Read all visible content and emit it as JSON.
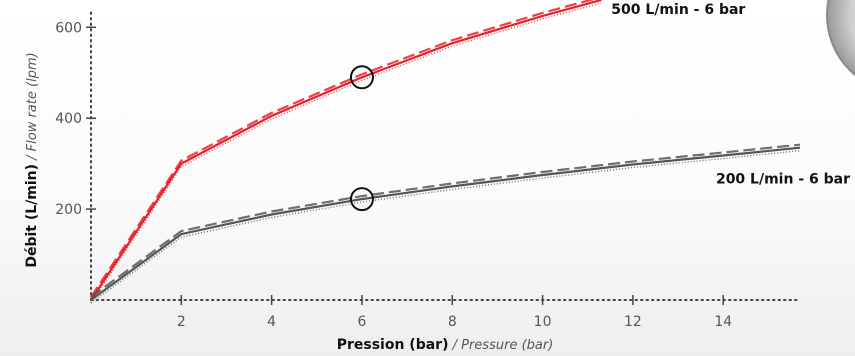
{
  "chart_data": {
    "type": "line",
    "xlabel": {
      "main": "Pression (bar)",
      "alt": " / Pressure (bar)"
    },
    "ylabel": {
      "main": "Débit (L/min)",
      "alt": " / Flow rate (lpm)"
    },
    "xlim": [
      0,
      15.7
    ],
    "ylim": [
      0,
      660
    ],
    "x_ticks": [
      2,
      4,
      6,
      8,
      10,
      12,
      14
    ],
    "y_ticks": [
      200,
      400,
      600
    ],
    "grid": false,
    "colors": {
      "red": "#e8202a",
      "dark": "#555555",
      "axis": "#444444"
    },
    "series": [
      {
        "name": "500 L/min - 6 bar",
        "color": "#e8202a",
        "x": [
          0,
          2,
          4,
          6,
          8,
          10,
          11.3
        ],
        "y": [
          0,
          300,
          405,
          490,
          565,
          625,
          660
        ],
        "marker": {
          "x": 6,
          "y": 490
        }
      },
      {
        "name": "200 L/min - 6 bar",
        "color": "#555555",
        "x": [
          0,
          2,
          4,
          6,
          8,
          10,
          12,
          14,
          15.7
        ],
        "y": [
          0,
          145,
          188,
          222,
          250,
          275,
          298,
          318,
          335
        ],
        "marker": {
          "x": 6,
          "y": 222
        }
      }
    ]
  }
}
